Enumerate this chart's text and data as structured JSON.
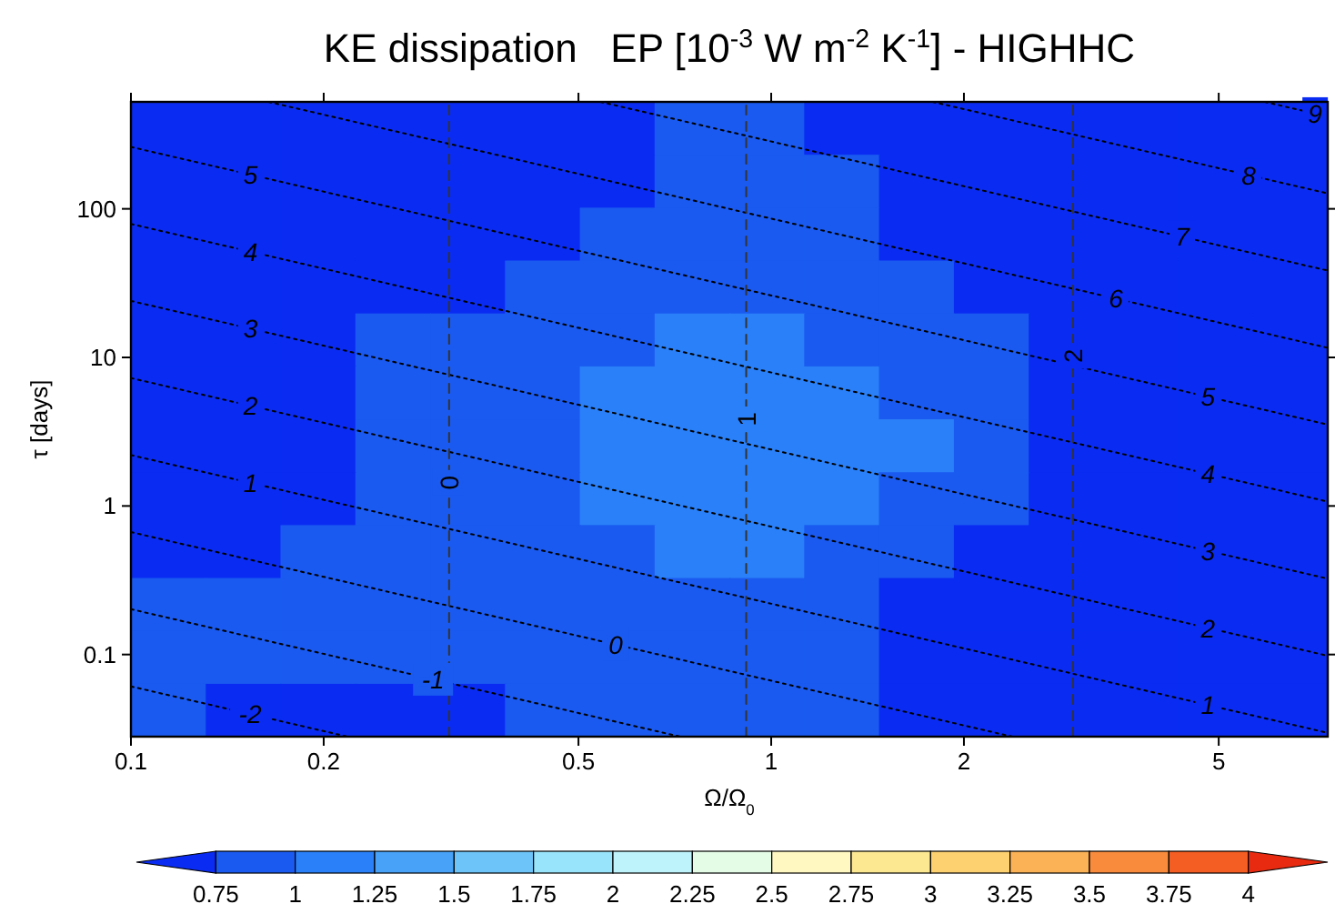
{
  "chart_data": {
    "type": "heatmap",
    "title": "KE dissipation   EP [10$^{-3}$ W m$^{-2}$ K$^{-1}$] - HIGHHC",
    "xlabel": "Ω/Ω$_{0}$",
    "ylabel": "τ [days]",
    "log": "xy",
    "xlim": [
      0.1,
      7.4
    ],
    "xticks": [
      0.1,
      0.2,
      0.5,
      1,
      2,
      5
    ],
    "ylim": [
      0.028,
      525
    ],
    "yticks": [
      0.1,
      1,
      10,
      100
    ],
    "x": [
      0.1144,
      0.1497,
      0.1959,
      0.2564,
      0.3356,
      0.4392,
      0.5748,
      0.7522,
      0.9845,
      1.288,
      1.686,
      2.207,
      2.888,
      3.78,
      4.946,
      6.473
    ],
    "y": [
      348.5,
      153.5,
      67.6,
      29.77,
      13.11,
      5.774,
      2.543,
      1.12,
      0.4932,
      0.2172,
      0.09566,
      0.04213
    ],
    "cells": [
      [
        0.6,
        0.6,
        0.6,
        0.6,
        0.6,
        0.6,
        0.6,
        0.875,
        0.875,
        0.6,
        0.6,
        0.6,
        0.6,
        0.6,
        0.6,
        0.6
      ],
      [
        0.6,
        0.6,
        0.6,
        0.6,
        0.6,
        0.6,
        0.6,
        0.875,
        0.875,
        0.875,
        0.6,
        0.6,
        0.6,
        0.6,
        0.6,
        0.6
      ],
      [
        0.6,
        0.6,
        0.6,
        0.6,
        0.6,
        0.6,
        0.875,
        0.875,
        0.875,
        0.875,
        0.6,
        0.6,
        0.6,
        0.6,
        0.6,
        0.6
      ],
      [
        0.6,
        0.6,
        0.6,
        0.6,
        0.6,
        0.875,
        0.875,
        0.875,
        0.875,
        0.875,
        0.875,
        0.6,
        0.6,
        0.6,
        0.6,
        0.6
      ],
      [
        0.6,
        0.6,
        0.6,
        0.875,
        0.875,
        0.875,
        0.875,
        1.125,
        1.125,
        0.875,
        0.875,
        0.875,
        0.6,
        0.6,
        0.6,
        0.6
      ],
      [
        0.6,
        0.6,
        0.6,
        0.875,
        0.875,
        0.875,
        1.125,
        1.125,
        1.125,
        1.125,
        0.875,
        0.875,
        0.6,
        0.6,
        0.6,
        0.6
      ],
      [
        0.6,
        0.6,
        0.6,
        0.875,
        0.875,
        0.875,
        1.125,
        1.125,
        1.125,
        1.125,
        1.125,
        0.875,
        0.6,
        0.6,
        0.6,
        0.6
      ],
      [
        0.6,
        0.6,
        0.6,
        0.875,
        0.875,
        0.875,
        1.125,
        1.125,
        1.125,
        1.125,
        0.875,
        0.875,
        0.6,
        0.6,
        0.6,
        0.6
      ],
      [
        0.6,
        0.6,
        0.875,
        0.875,
        0.875,
        0.875,
        0.875,
        1.125,
        1.125,
        0.875,
        0.875,
        0.6,
        0.6,
        0.6,
        0.6,
        0.6
      ],
      [
        0.875,
        0.875,
        0.875,
        0.875,
        0.875,
        0.875,
        0.875,
        0.875,
        0.875,
        0.875,
        0.6,
        0.6,
        0.6,
        0.6,
        0.6,
        0.6
      ],
      [
        0.875,
        0.875,
        0.875,
        0.875,
        0.875,
        0.875,
        0.875,
        0.875,
        0.875,
        0.875,
        0.6,
        0.6,
        0.6,
        0.6,
        0.6,
        0.6
      ],
      [
        0.875,
        0.6,
        0.6,
        0.6,
        0.6,
        0.875,
        0.875,
        0.875,
        0.875,
        0.875,
        0.6,
        0.6,
        0.6,
        0.6,
        0.6,
        0.6
      ]
    ],
    "clim": [
      0.5,
      4.25
    ],
    "cticks": [
      0.75,
      1,
      1.25,
      1.5,
      1.75,
      2,
      2.25,
      2.5,
      2.75,
      3,
      3.25,
      3.5,
      3.75,
      4
    ],
    "colors": [
      "#0a2cf2",
      "#1a5af0",
      "#2a80f8",
      "#47a2f8",
      "#6cc4f8",
      "#98e4fa",
      "#bff3fb",
      "#e4fbe6",
      "#fff8c0",
      "#fde892",
      "#fdd070",
      "#fbb155",
      "#f98b3c",
      "#f55e22",
      "#e82a10"
    ],
    "series": [
      {
        "name": "-2",
        "type": "line",
        "color": "#000000",
        "line_style": "dotted",
        "x": [
          0.1,
          0.218
        ],
        "values": [
          0.061,
          0.028
        ]
      },
      {
        "name": "-1",
        "type": "line",
        "color": "#000000",
        "line_style": "dotted",
        "x": [
          0.1,
          0.721
        ],
        "values": [
          0.202,
          0.028
        ]
      },
      {
        "name": "0",
        "type": "line",
        "color": "#000000",
        "line_style": "dotted",
        "x": [
          0.1,
          2.38
        ],
        "values": [
          0.667,
          0.028
        ]
      },
      {
        "name": "1",
        "type": "line",
        "color": "#000000",
        "line_style": "dotted",
        "x": [
          0.1,
          7.4
        ],
        "values": [
          2.2,
          0.0297
        ]
      },
      {
        "name": "2",
        "type": "line",
        "color": "#000000",
        "line_style": "dotted",
        "x": [
          0.1,
          7.4
        ],
        "values": [
          7.26,
          0.0981
        ]
      },
      {
        "name": "3",
        "type": "line",
        "color": "#000000",
        "line_style": "dotted",
        "x": [
          0.1,
          7.4
        ],
        "values": [
          24,
          0.324
        ]
      },
      {
        "name": "4",
        "type": "line",
        "color": "#000000",
        "line_style": "dotted",
        "x": [
          0.1,
          7.4
        ],
        "values": [
          79.1,
          1.07
        ]
      },
      {
        "name": "5",
        "type": "line",
        "color": "#000000",
        "line_style": "dotted",
        "x": [
          0.1,
          7.4
        ],
        "values": [
          261,
          3.53
        ]
      },
      {
        "name": "6",
        "type": "line",
        "color": "#000000",
        "line_style": "dotted",
        "x": [
          0.164,
          7.4
        ],
        "values": [
          525,
          11.6
        ]
      },
      {
        "name": "7",
        "type": "line",
        "color": "#000000",
        "line_style": "dotted",
        "x": [
          0.541,
          7.4
        ],
        "values": [
          525,
          38.4
        ]
      },
      {
        "name": "8",
        "type": "line",
        "color": "#000000",
        "line_style": "dotted",
        "x": [
          1.787,
          7.4
        ],
        "values": [
          525,
          127
        ]
      },
      {
        "name": "9",
        "type": "line",
        "color": "#000000",
        "line_style": "dotted",
        "x": [
          5.9,
          7.4
        ],
        "values": [
          525,
          418
        ]
      },
      {
        "name": "0",
        "type": "line",
        "color": "#333333",
        "line_style": "dashed",
        "x": [
          0.314,
          0.314
        ],
        "values": [
          0.028,
          525
        ]
      },
      {
        "name": "1",
        "type": "line",
        "color": "#333333",
        "line_style": "dashed",
        "x": [
          0.914,
          0.914
        ],
        "values": [
          0.028,
          525
        ]
      },
      {
        "name": "2",
        "type": "line",
        "color": "#333333",
        "line_style": "dashed",
        "x": [
          2.96,
          2.96
        ],
        "values": [
          0.028,
          525
        ]
      }
    ]
  }
}
